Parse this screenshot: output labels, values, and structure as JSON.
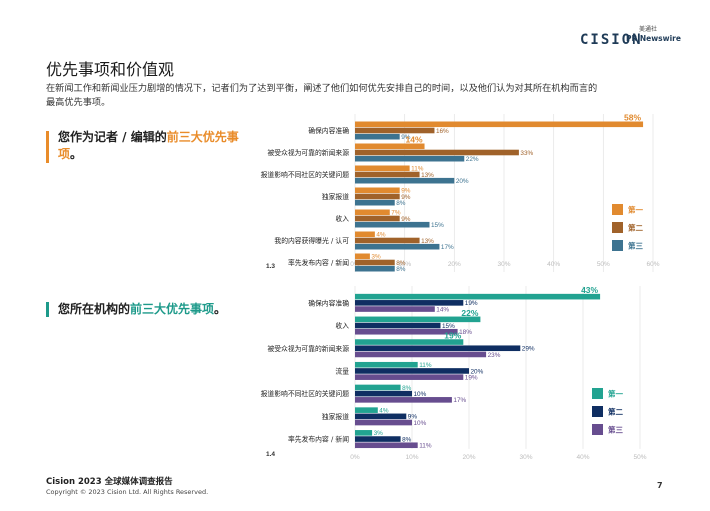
{
  "header": {
    "brand_cision": "CISION",
    "brand_pr_cn": "美通社",
    "brand_pr_en": "PR Newswire"
  },
  "page": {
    "title": "优先事项和价值观",
    "intro": "在新闻工作和新闻业压力剧增的情况下，记者们为了达到平衡，阐述了他们如何优先安排自己的时间，以及他们认为对其所在机构而言的最高优先事项。"
  },
  "questions": {
    "q1_pre": "您作为记者 / 编辑的",
    "q1_hl": "前三大优先事项",
    "q1_post": "。",
    "q2_pre": "您所在机构的",
    "q2_hl": "前三大优先事项",
    "q2_post": "。"
  },
  "colors": {
    "orange": "#e18a2f",
    "brown": "#a0622a",
    "slate": "#3d7390",
    "teal": "#22a391",
    "navy": "#0f2e62",
    "purple": "#674d8f",
    "grid": "#e6e6e6",
    "axis_label": "#bbbbbb"
  },
  "chart_data": [
    {
      "type": "bar",
      "orientation": "horizontal",
      "figure_label": "1.3",
      "categories": [
        "确保内容准确",
        "被受众视为可靠的新闻来源",
        "报道影响不同社区的关键问题",
        "独家报道",
        "收入",
        "我的内容获得曝光 / 认可",
        "率先发布内容 / 新闻"
      ],
      "series": [
        {
          "name": "第一",
          "values": [
            58,
            14,
            11,
            9,
            7,
            4,
            3
          ]
        },
        {
          "name": "第二",
          "values": [
            16,
            33,
            13,
            9,
            9,
            13,
            8
          ]
        },
        {
          "name": "第三",
          "values": [
            9,
            22,
            20,
            8,
            15,
            17,
            8
          ]
        }
      ],
      "xlim": [
        0,
        60
      ],
      "xticks": [
        "0%",
        "10%",
        "20%",
        "30%",
        "40%",
        "50%",
        "60%"
      ],
      "legend": "right"
    },
    {
      "type": "bar",
      "orientation": "horizontal",
      "figure_label": "1.4",
      "categories": [
        "确保内容准确",
        "收入",
        "被受众视为可靠的新闻来源",
        "流量",
        "报道影响不同社区的关键问题",
        "独家报道",
        "率先发布内容 / 新闻"
      ],
      "series": [
        {
          "name": "第一",
          "values": [
            43,
            22,
            19,
            11,
            8,
            4,
            3
          ]
        },
        {
          "name": "第二",
          "values": [
            19,
            15,
            29,
            20,
            10,
            9,
            8
          ]
        },
        {
          "name": "第三",
          "values": [
            14,
            18,
            23,
            19,
            17,
            10,
            11
          ]
        }
      ],
      "xlim": [
        0,
        50
      ],
      "xticks": [
        "0%",
        "10%",
        "20%",
        "30%",
        "40%",
        "50%"
      ],
      "legend": "right"
    }
  ],
  "footer": {
    "title": "Cision 2023 全球媒体调查报告",
    "copyright": "Copyright © 2023 Cision Ltd. All Rights Reserved.",
    "page_number": "7"
  }
}
